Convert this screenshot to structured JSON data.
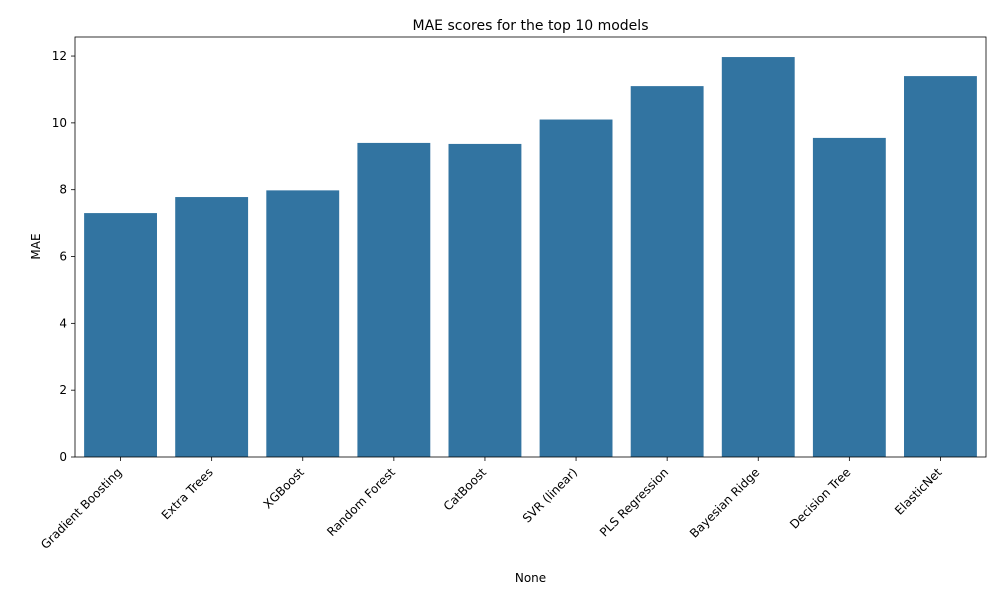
{
  "chart_data": {
    "type": "bar",
    "title": "MAE scores for the top 10 models",
    "xlabel": "None",
    "ylabel": "MAE",
    "categories": [
      "Gradient Boosting",
      "Extra Trees",
      "XGBoost",
      "Random Forest",
      "CatBoost",
      "SVR (linear)",
      "PLS Regression",
      "Bayesian Ridge",
      "Decision Tree",
      "ElasticNet"
    ],
    "values": [
      7.3,
      7.78,
      7.98,
      9.4,
      9.37,
      10.1,
      11.1,
      11.97,
      9.55,
      11.4
    ],
    "ylim": [
      0,
      12.57
    ],
    "yticks": [
      0,
      2,
      4,
      6,
      8,
      10,
      12
    ],
    "grid": false,
    "bar_color": "#3274a1"
  }
}
